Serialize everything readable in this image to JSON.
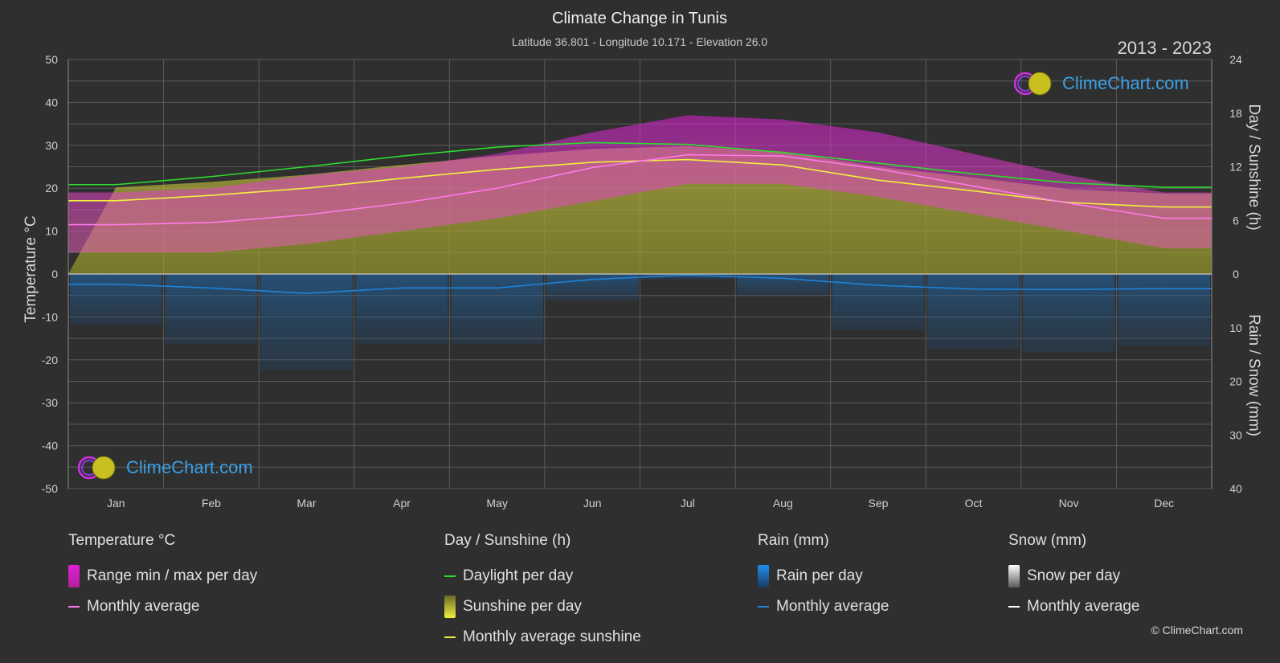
{
  "title": "Climate Change in Tunis",
  "subtitle": "Latitude 36.801 - Longitude 10.171 - Elevation 26.0",
  "year_range": "2013 - 2023",
  "logo_text": "ClimeChart.com",
  "copyright": "© ClimeChart.com",
  "colors": {
    "background": "#2f2f2f",
    "temp_range": "#e020d8",
    "temp_avg": "#ff7ae8",
    "daylight": "#2edc2e",
    "sunshine_fill": "#b8b830",
    "sunshine_avg": "#f0f040",
    "rain": "#1e82d8",
    "snow": "#ffffff"
  },
  "legend": {
    "temperature": {
      "title": "Temperature °C",
      "range": "Range min / max per day",
      "avg": "Monthly average"
    },
    "sunshine": {
      "title": "Day / Sunshine (h)",
      "daylight": "Daylight per day",
      "sunshine": "Sunshine per day",
      "avg": "Monthly average sunshine"
    },
    "rain": {
      "title": "Rain (mm)",
      "per_day": "Rain per day",
      "avg": "Monthly average"
    },
    "snow": {
      "title": "Snow (mm)",
      "per_day": "Snow per day",
      "avg": "Monthly average"
    }
  },
  "chart_data": {
    "type": "area",
    "title": "Climate Change in Tunis",
    "subtitle": "Latitude 36.801 - Longitude 10.171 - Elevation 26.0",
    "categories": [
      "Jan",
      "Feb",
      "Mar",
      "Apr",
      "May",
      "Jun",
      "Jul",
      "Aug",
      "Sep",
      "Oct",
      "Nov",
      "Dec"
    ],
    "y_left": {
      "label": "Temperature °C",
      "ticks": [
        50,
        40,
        30,
        20,
        10,
        0,
        -10,
        -20,
        -30,
        -40,
        -50
      ],
      "lim": [
        -50,
        50
      ]
    },
    "y_right_top": {
      "label": "Day / Sunshine (h)",
      "ticks": [
        24,
        18,
        12,
        6,
        0
      ],
      "lim": [
        0,
        24
      ]
    },
    "y_right_bottom": {
      "label": "Rain / Snow (mm)",
      "ticks": [
        0,
        10,
        20,
        30,
        40
      ],
      "lim": [
        0,
        40
      ]
    },
    "grid": true,
    "series": [
      {
        "name": "Daylight per day",
        "unit": "h",
        "values": [
          10.0,
          10.9,
          12.0,
          13.2,
          14.2,
          14.7,
          14.5,
          13.6,
          12.4,
          11.2,
          10.2,
          9.7
        ]
      },
      {
        "name": "Monthly average sunshine",
        "unit": "h",
        "values": [
          8.2,
          8.8,
          9.6,
          10.7,
          11.7,
          12.5,
          12.8,
          12.2,
          10.5,
          9.3,
          8.0,
          7.5
        ]
      },
      {
        "name": "Temperature monthly average",
        "unit": "°C",
        "values": [
          11.5,
          12.0,
          13.8,
          16.5,
          20.0,
          24.8,
          27.8,
          27.5,
          24.5,
          20.5,
          16.5,
          13.0
        ]
      },
      {
        "name": "Temperature daily max (approx.)",
        "unit": "°C",
        "values": [
          19,
          20,
          23,
          25,
          28,
          33,
          37,
          36,
          33,
          28,
          23,
          19
        ]
      },
      {
        "name": "Temperature daily min (approx.)",
        "unit": "°C",
        "values": [
          5,
          5,
          7,
          10,
          13,
          17,
          21,
          21,
          18,
          14,
          10,
          6
        ]
      },
      {
        "name": "Rain monthly average",
        "unit": "mm",
        "values": [
          1.9,
          2.6,
          3.6,
          2.6,
          2.6,
          1.0,
          0.2,
          0.8,
          2.1,
          2.8,
          2.9,
          2.7
        ]
      },
      {
        "name": "Snow monthly average",
        "unit": "mm",
        "values": [
          0,
          0,
          0,
          0,
          0,
          0,
          0,
          0,
          0,
          0,
          0,
          0
        ]
      }
    ]
  }
}
